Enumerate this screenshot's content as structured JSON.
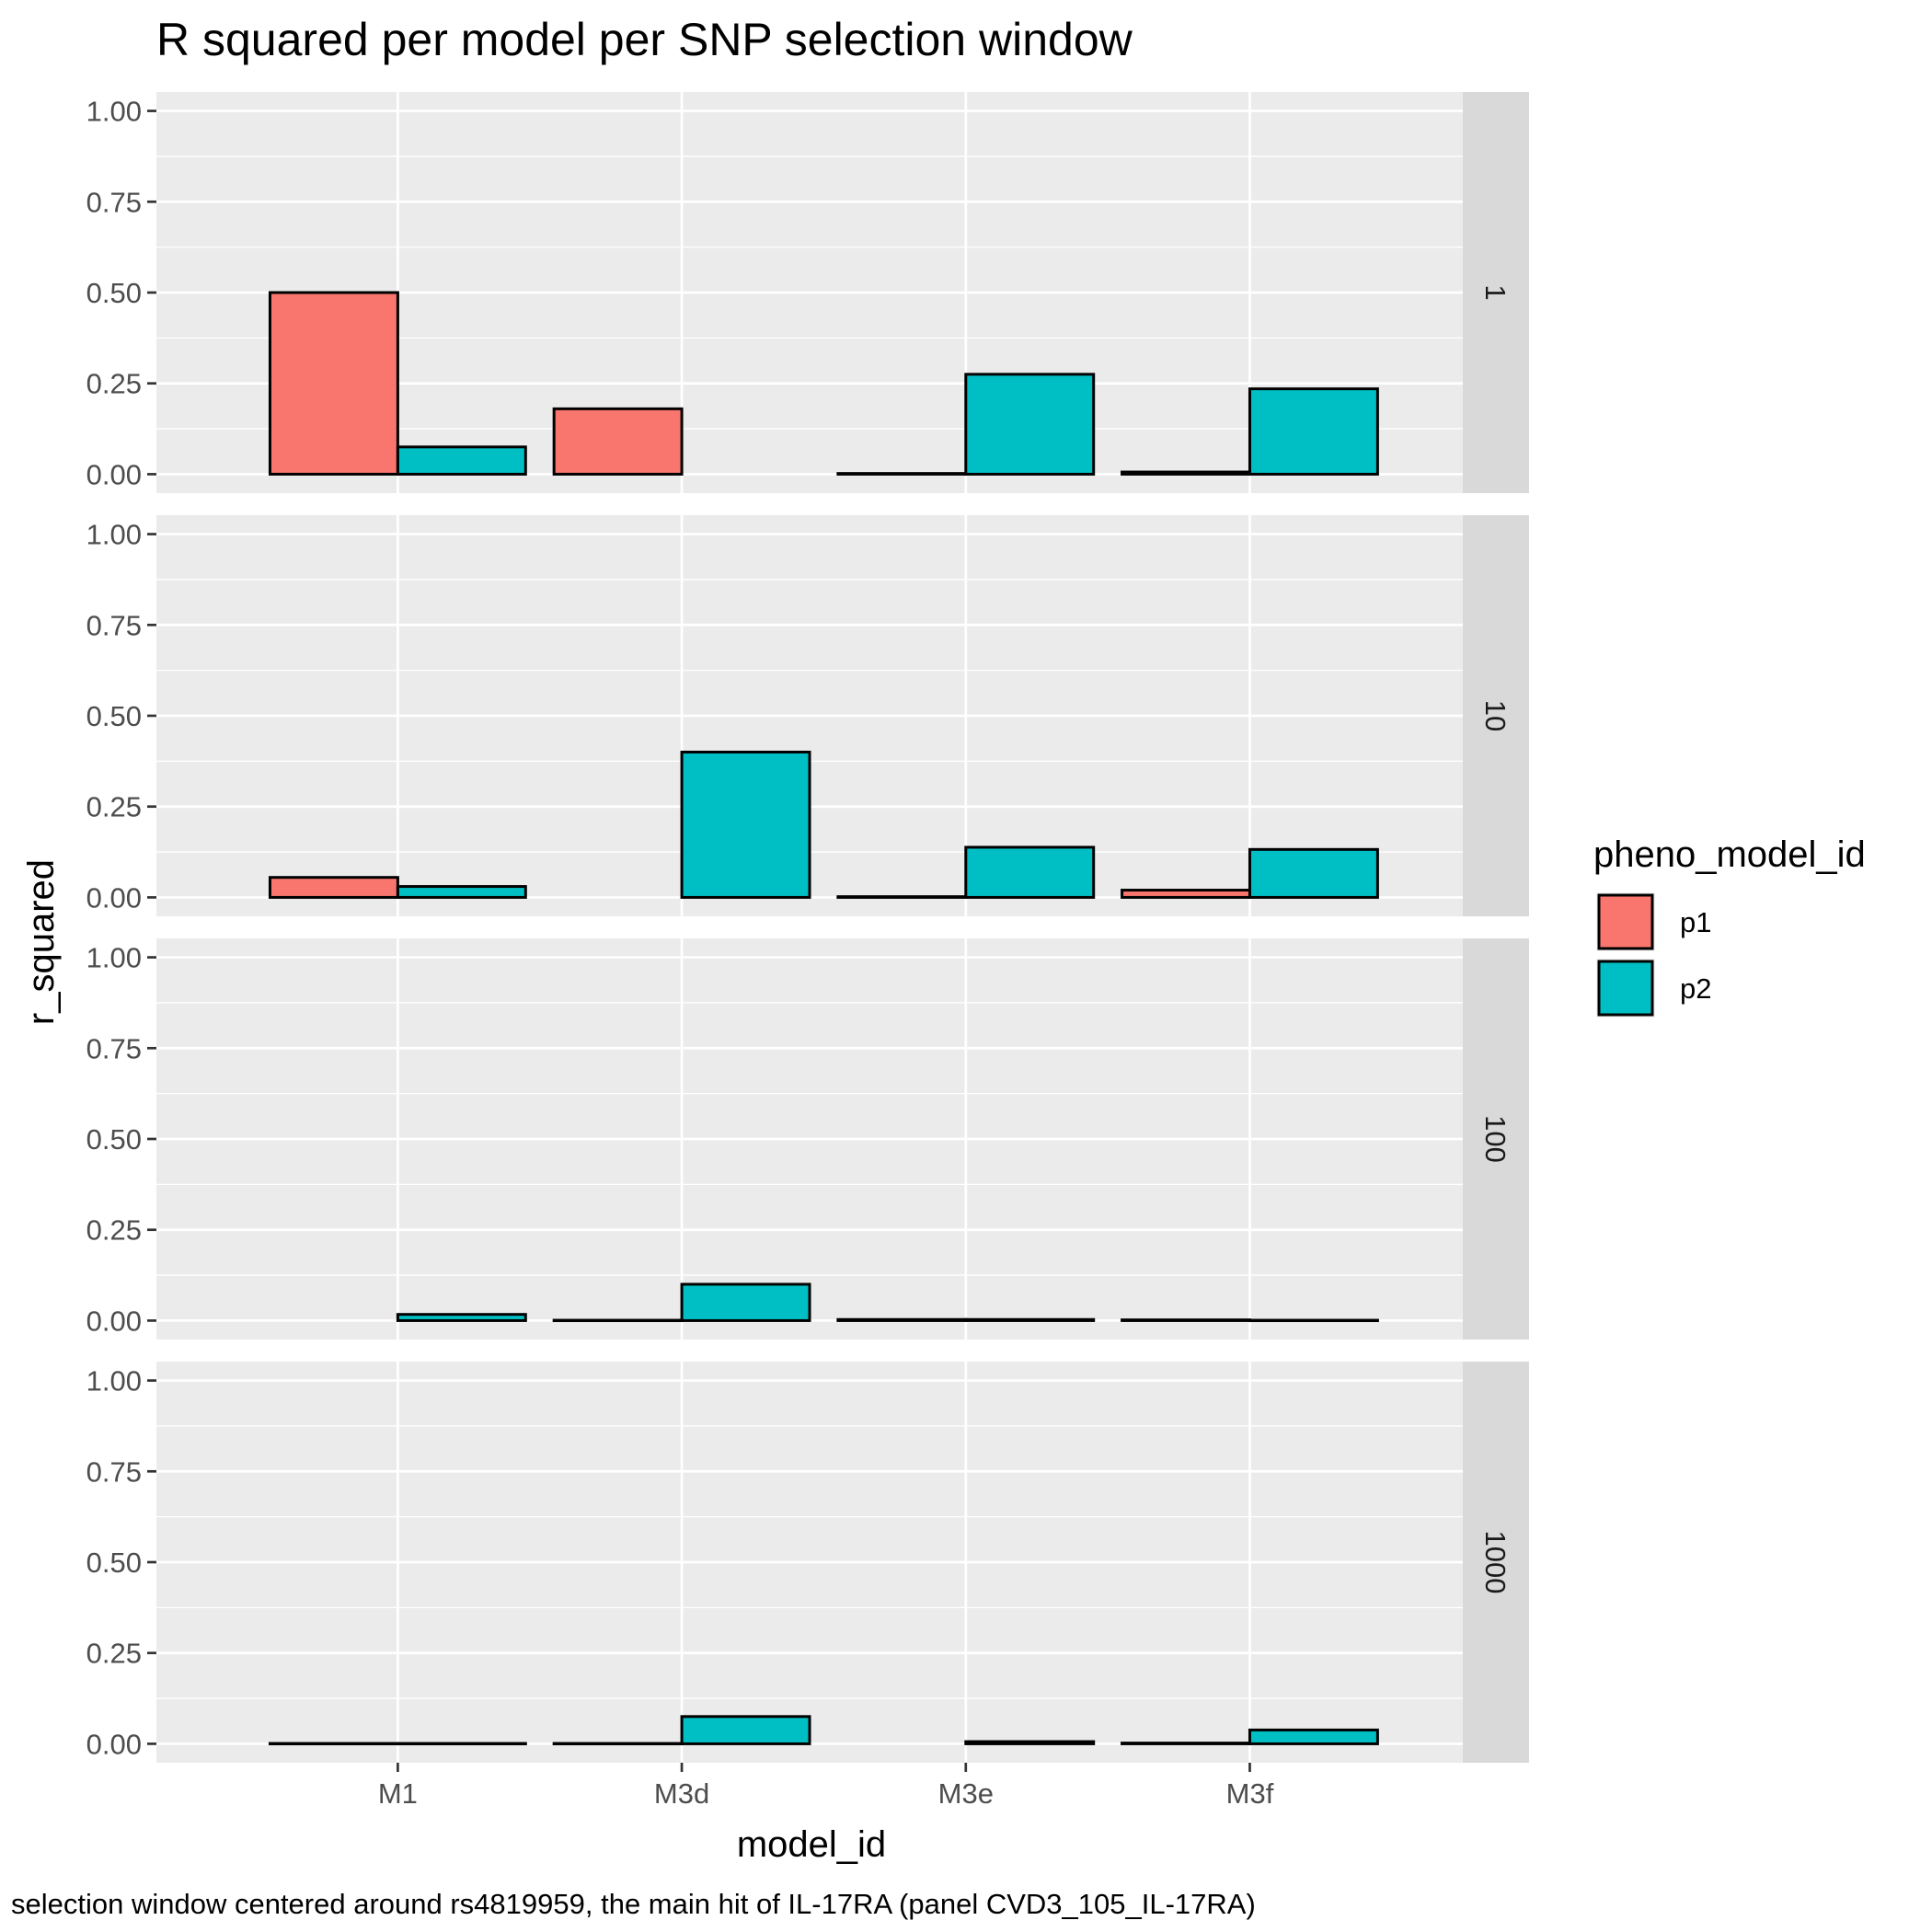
{
  "chart_data": {
    "type": "bar",
    "title": "R squared per model per SNP selection window",
    "xlabel": "model_id",
    "ylabel": "r_squared",
    "caption": "selection window centered around rs4819959, the main hit of IL-17RA (panel CVD3_105_IL-17RA)",
    "ylim": [
      0,
      1.05
    ],
    "y_ticks": [
      "0.00",
      "0.25",
      "0.50",
      "0.75",
      "1.00"
    ],
    "categories": [
      "M1",
      "M3d",
      "M3e",
      "M3f"
    ],
    "legend": {
      "title": "pheno_model_id",
      "position": "right",
      "entries": [
        {
          "name": "p1",
          "color": "#F8766D"
        },
        {
          "name": "p2",
          "color": "#00BFC4"
        }
      ]
    },
    "grid": true,
    "facets": [
      {
        "label": "1",
        "series": [
          {
            "name": "p1",
            "values": [
              0.5,
              0.18,
              0.002,
              0.006
            ]
          },
          {
            "name": "p2",
            "values": [
              0.075,
              null,
              0.275,
              0.235
            ]
          }
        ]
      },
      {
        "label": "10",
        "series": [
          {
            "name": "p1",
            "values": [
              0.055,
              null,
              0.002,
              0.02
            ]
          },
          {
            "name": "p2",
            "values": [
              0.03,
              0.4,
              0.138,
              0.132
            ]
          }
        ]
      },
      {
        "label": "100",
        "series": [
          {
            "name": "p1",
            "values": [
              null,
              0.001,
              0.003,
              0.002
            ]
          },
          {
            "name": "p2",
            "values": [
              0.017,
              0.1,
              0.003,
              0.001
            ]
          }
        ]
      },
      {
        "label": "1000",
        "series": [
          {
            "name": "p1",
            "values": [
              0.001,
              0.001,
              null,
              0.002
            ]
          },
          {
            "name": "p2",
            "values": [
              0.001,
              0.075,
              0.006,
              0.038
            ]
          }
        ]
      }
    ]
  }
}
